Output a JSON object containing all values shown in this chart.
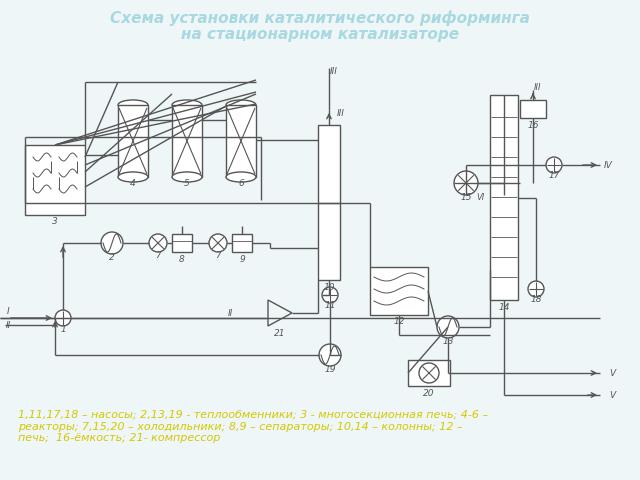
{
  "title_line1": "Схема установки каталитического риформинга",
  "title_line2": "на стационарном катализаторе",
  "title_color": "#a8d8e0",
  "bg_color": "#eef6f8",
  "legend_text": "1,11,17,18 – насосы; 2,13,19 - теплообменники; 3 - многосекционная печь; 4-6 –\nреакторы; 7,15,20 – холодильники; 8,9 – сепараторы; 10,14 – колонны; 12 –\nпечь;  16-ёмкость; 21- компрессор",
  "legend_color": "#d4c800",
  "diagram_color": "#555555",
  "diagram_lw": 1.0
}
